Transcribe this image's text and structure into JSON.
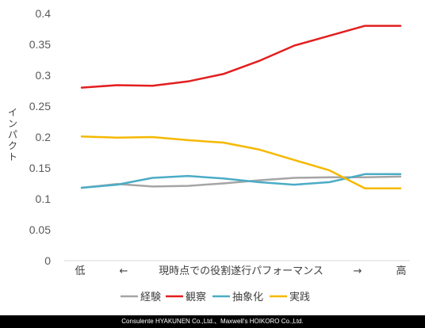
{
  "chart_data": {
    "type": "line",
    "ylabel": "インパクト",
    "y_ticks": [
      "0",
      "0.05",
      "0.1",
      "0.15",
      "0.2",
      "0.25",
      "0.3",
      "0.35",
      "0.4"
    ],
    "ylim": [
      0,
      0.4
    ],
    "grid": false,
    "legend_position": "bottom",
    "x_axis": {
      "left": "低",
      "left_arrow": "←",
      "middle": "現時点での役割遂行パフォーマンス",
      "right_arrow": "→",
      "right": "高"
    },
    "x": [
      1,
      2,
      3,
      4,
      5,
      6,
      7,
      8,
      9,
      10
    ],
    "series": [
      {
        "name": "経験",
        "color": "#a5a5a5",
        "values": [
          0.118,
          0.124,
          0.12,
          0.121,
          0.125,
          0.13,
          0.134,
          0.135,
          0.135,
          0.136
        ]
      },
      {
        "name": "観察",
        "color": "#e31e1e",
        "values": [
          0.28,
          0.284,
          0.283,
          0.29,
          0.302,
          0.323,
          0.348,
          0.364,
          0.38,
          0.38
        ]
      },
      {
        "name": "抽象化",
        "color": "#4bacc6",
        "values": [
          0.118,
          0.123,
          0.134,
          0.137,
          0.133,
          0.127,
          0.123,
          0.127,
          0.14,
          0.14
        ]
      },
      {
        "name": "実践",
        "color": "#f5b800",
        "values": [
          0.201,
          0.199,
          0.2,
          0.195,
          0.191,
          0.18,
          0.163,
          0.146,
          0.117,
          0.117
        ]
      }
    ]
  },
  "footer": {
    "text": "Consulente HYAKUNEN Co.,Ltd.、Maxwell's HOIKORO Co.,Ltd."
  }
}
